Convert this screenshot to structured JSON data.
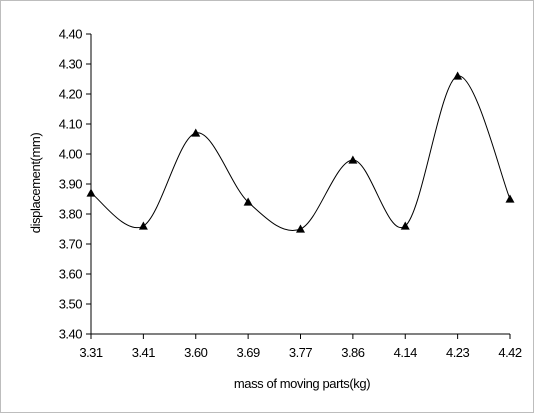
{
  "chart_data": {
    "type": "line",
    "title": "",
    "xlabel": "mass of moving parts(kg)",
    "ylabel": "displacement(mm)",
    "categories": [
      "3.31",
      "3.41",
      "3.60",
      "3.69",
      "3.77",
      "3.86",
      "4.14",
      "4.23",
      "4.42"
    ],
    "values": [
      3.87,
      3.76,
      4.07,
      3.84,
      3.75,
      3.98,
      3.76,
      4.26,
      3.85
    ],
    "ylim": [
      3.4,
      4.4
    ],
    "yticks": [
      "3.40",
      "3.50",
      "3.60",
      "3.70",
      "3.80",
      "3.90",
      "4.00",
      "4.10",
      "4.20",
      "4.30",
      "4.40"
    ],
    "grid": false,
    "legend": "none",
    "marker": "triangle",
    "line_style": "smoothed",
    "colors": {
      "line": "#000000",
      "marker": "#000000",
      "axis": "#000000",
      "frame": "#bdbdbd"
    }
  }
}
